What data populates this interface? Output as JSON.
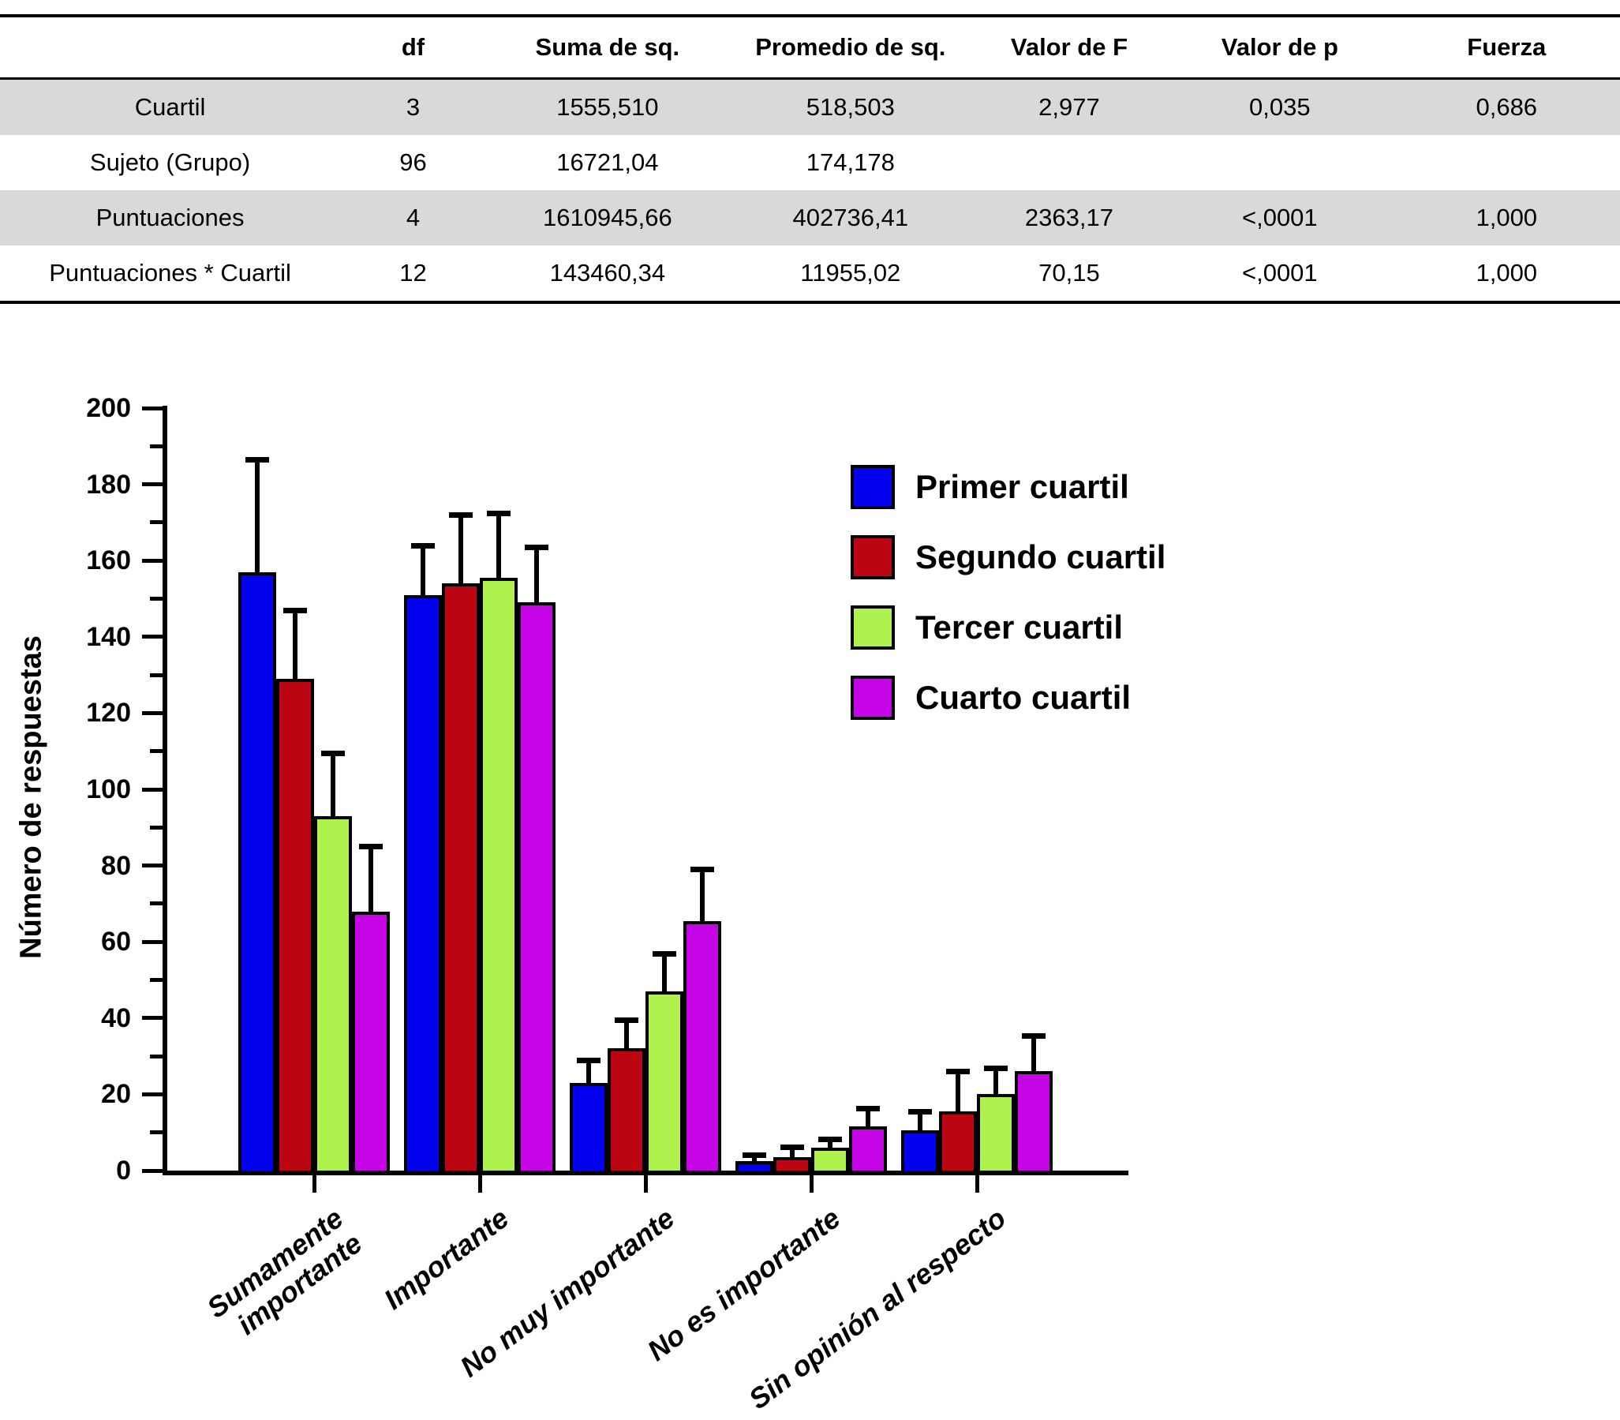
{
  "anova_table": {
    "columns": [
      "",
      "df",
      "Suma de sq.",
      "Promedio de sq.",
      "Valor de F",
      "Valor de p",
      "Fuerza"
    ],
    "rows": [
      {
        "label": "Cuartil",
        "values": [
          "3",
          "1555,510",
          "518,503",
          "2,977",
          "0,035",
          "0,686"
        ],
        "shaded": true
      },
      {
        "label": "Sujeto (Grupo)",
        "values": [
          "96",
          "16721,04",
          "174,178",
          "",
          "",
          ""
        ],
        "shaded": false
      },
      {
        "label": "Puntuaciones",
        "values": [
          "4",
          "1610945,66",
          "402736,41",
          "2363,17",
          "<,0001",
          "1,000"
        ],
        "shaded": true
      },
      {
        "label": "Puntuaciones * Cuartil",
        "values": [
          "12",
          "143460,34",
          "11955,02",
          "70,15",
          "<,0001",
          "1,000"
        ],
        "shaded": false
      }
    ],
    "shade_color": "#d9d9d9"
  },
  "chart_data": {
    "type": "bar",
    "title": "",
    "xlabel": "",
    "ylabel": "Número de respuestas",
    "ylim": [
      0,
      200
    ],
    "ytick_major": 20,
    "ytick_minor": 10,
    "grid": false,
    "legend_position": "upper right",
    "error_bars": "upper only",
    "categories": [
      "Sumamente\nimportante",
      "Importante",
      "No muy importante",
      "No es importante",
      "Sin opinión al respecto"
    ],
    "series": [
      {
        "name": "Primer cuartil",
        "color": "#0202ee",
        "values": [
          157,
          151,
          23,
          2.5,
          10.5
        ],
        "error_plus": [
          29.5,
          13,
          6,
          1.7,
          5
        ]
      },
      {
        "name": "Segundo cuartil",
        "color": "#bc0512",
        "values": [
          129,
          154,
          32,
          3.5,
          15.5
        ],
        "error_plus": [
          18,
          18,
          7.5,
          2.8,
          10.5
        ]
      },
      {
        "name": "Tercer cuartil",
        "color": "#aff24f",
        "values": [
          93,
          155.5,
          47,
          6,
          20
        ],
        "error_plus": [
          16.5,
          17,
          10,
          2.3,
          7
        ]
      },
      {
        "name": "Cuarto cuartil",
        "color": "#c505e5",
        "values": [
          68,
          149,
          65.5,
          11.5,
          26
        ],
        "error_plus": [
          17,
          14.5,
          13.5,
          4.9,
          9.5
        ]
      }
    ]
  }
}
